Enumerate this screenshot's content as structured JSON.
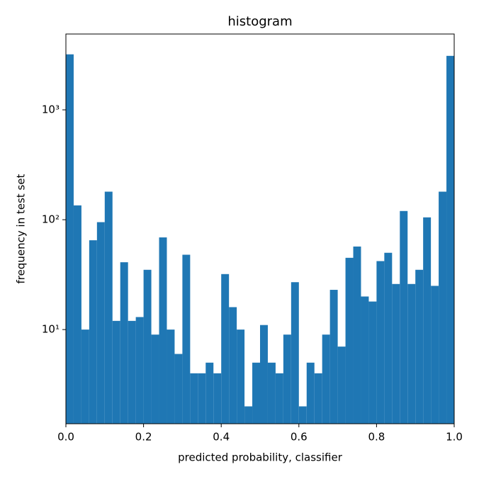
{
  "chart_data": {
    "type": "histogram",
    "title": "histogram",
    "x_label": "predicted probability, classifier",
    "y_label": "frequency in test set",
    "bins": [
      0.0,
      0.02,
      0.04,
      0.06,
      0.08,
      0.1,
      0.12,
      0.14,
      0.16,
      0.18,
      0.2,
      0.22,
      0.24,
      0.26,
      0.28,
      0.3,
      0.32,
      0.34,
      0.36,
      0.38,
      0.4,
      0.42,
      0.44,
      0.46,
      0.48,
      0.5,
      0.52,
      0.54,
      0.56,
      0.58,
      0.6,
      0.62,
      0.64,
      0.66,
      0.68,
      0.7,
      0.72,
      0.74,
      0.76,
      0.78,
      0.8,
      0.82,
      0.84,
      0.86,
      0.88,
      0.9,
      0.92,
      0.94,
      0.96,
      0.98,
      1.0
    ],
    "values": [
      3200,
      135,
      10,
      65,
      95,
      180,
      12,
      41,
      12,
      13,
      35,
      9,
      69,
      10,
      6,
      48,
      4,
      4,
      5,
      4,
      32,
      16,
      10,
      2,
      5,
      11,
      5,
      4,
      9,
      27,
      2,
      5,
      4,
      9,
      23,
      7,
      45,
      57,
      20,
      18,
      42,
      50,
      26,
      120,
      26,
      35,
      105,
      25,
      180,
      3100
    ],
    "color": "#1f77b4",
    "xlim": [
      0,
      1
    ],
    "xticks": [
      {
        "value": 0,
        "label": "0.0"
      },
      0.2,
      0.4,
      0.6,
      0.8,
      {
        "value": 1,
        "label": "1.0"
      }
    ],
    "ylim": [
      1.39,
      4900
    ],
    "yscale": "log",
    "yticks": [
      {
        "value": 10,
        "label": "10¹"
      },
      {
        "value": 100,
        "label": "10²"
      },
      {
        "value": 1000,
        "label": "10³"
      }
    ]
  }
}
